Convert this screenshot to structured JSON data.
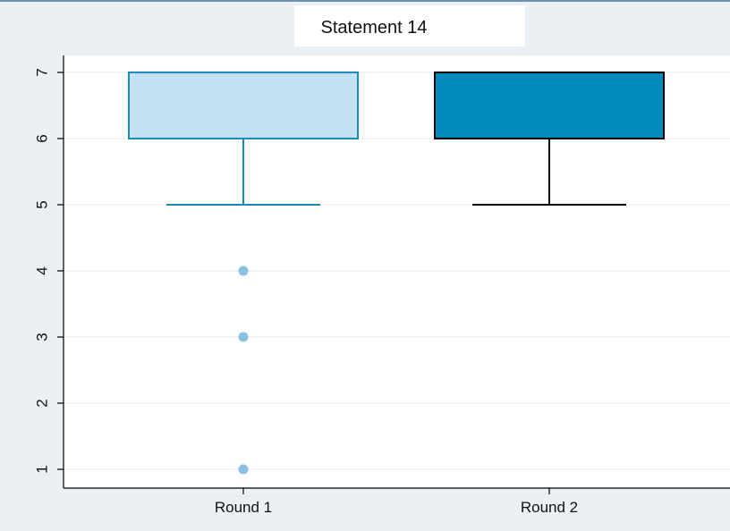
{
  "chart_data": {
    "type": "box",
    "title": "Statement 14",
    "xlabel": "",
    "ylabel": "",
    "categories": [
      "Round 1",
      "Round 2"
    ],
    "ylim": [
      1,
      7
    ],
    "yticks": [
      1,
      2,
      3,
      4,
      5,
      6,
      7
    ],
    "grid": true,
    "boxes": [
      {
        "category": "Round 1",
        "whisker_low": 5,
        "q1": 6,
        "median": 7,
        "q3": 7,
        "whisker_high": 7,
        "outliers": [
          4,
          3,
          1
        ],
        "fill": "#c3e1f3",
        "stroke": "#1a8ab8",
        "outlier_color": "#8bbfe6"
      },
      {
        "category": "Round 2",
        "whisker_low": 5,
        "q1": 6,
        "median": 7,
        "q3": 7,
        "whisker_high": 7,
        "outliers": [],
        "fill": "#008bbd",
        "stroke": "#000000",
        "outlier_color": "#000000"
      }
    ]
  },
  "colors": {
    "outer_background": "#eaf0f3",
    "plot_background": "#ffffff",
    "grid": "#e9eff2",
    "title_box": "#ffffff",
    "top_border": "#6b8fb0"
  }
}
